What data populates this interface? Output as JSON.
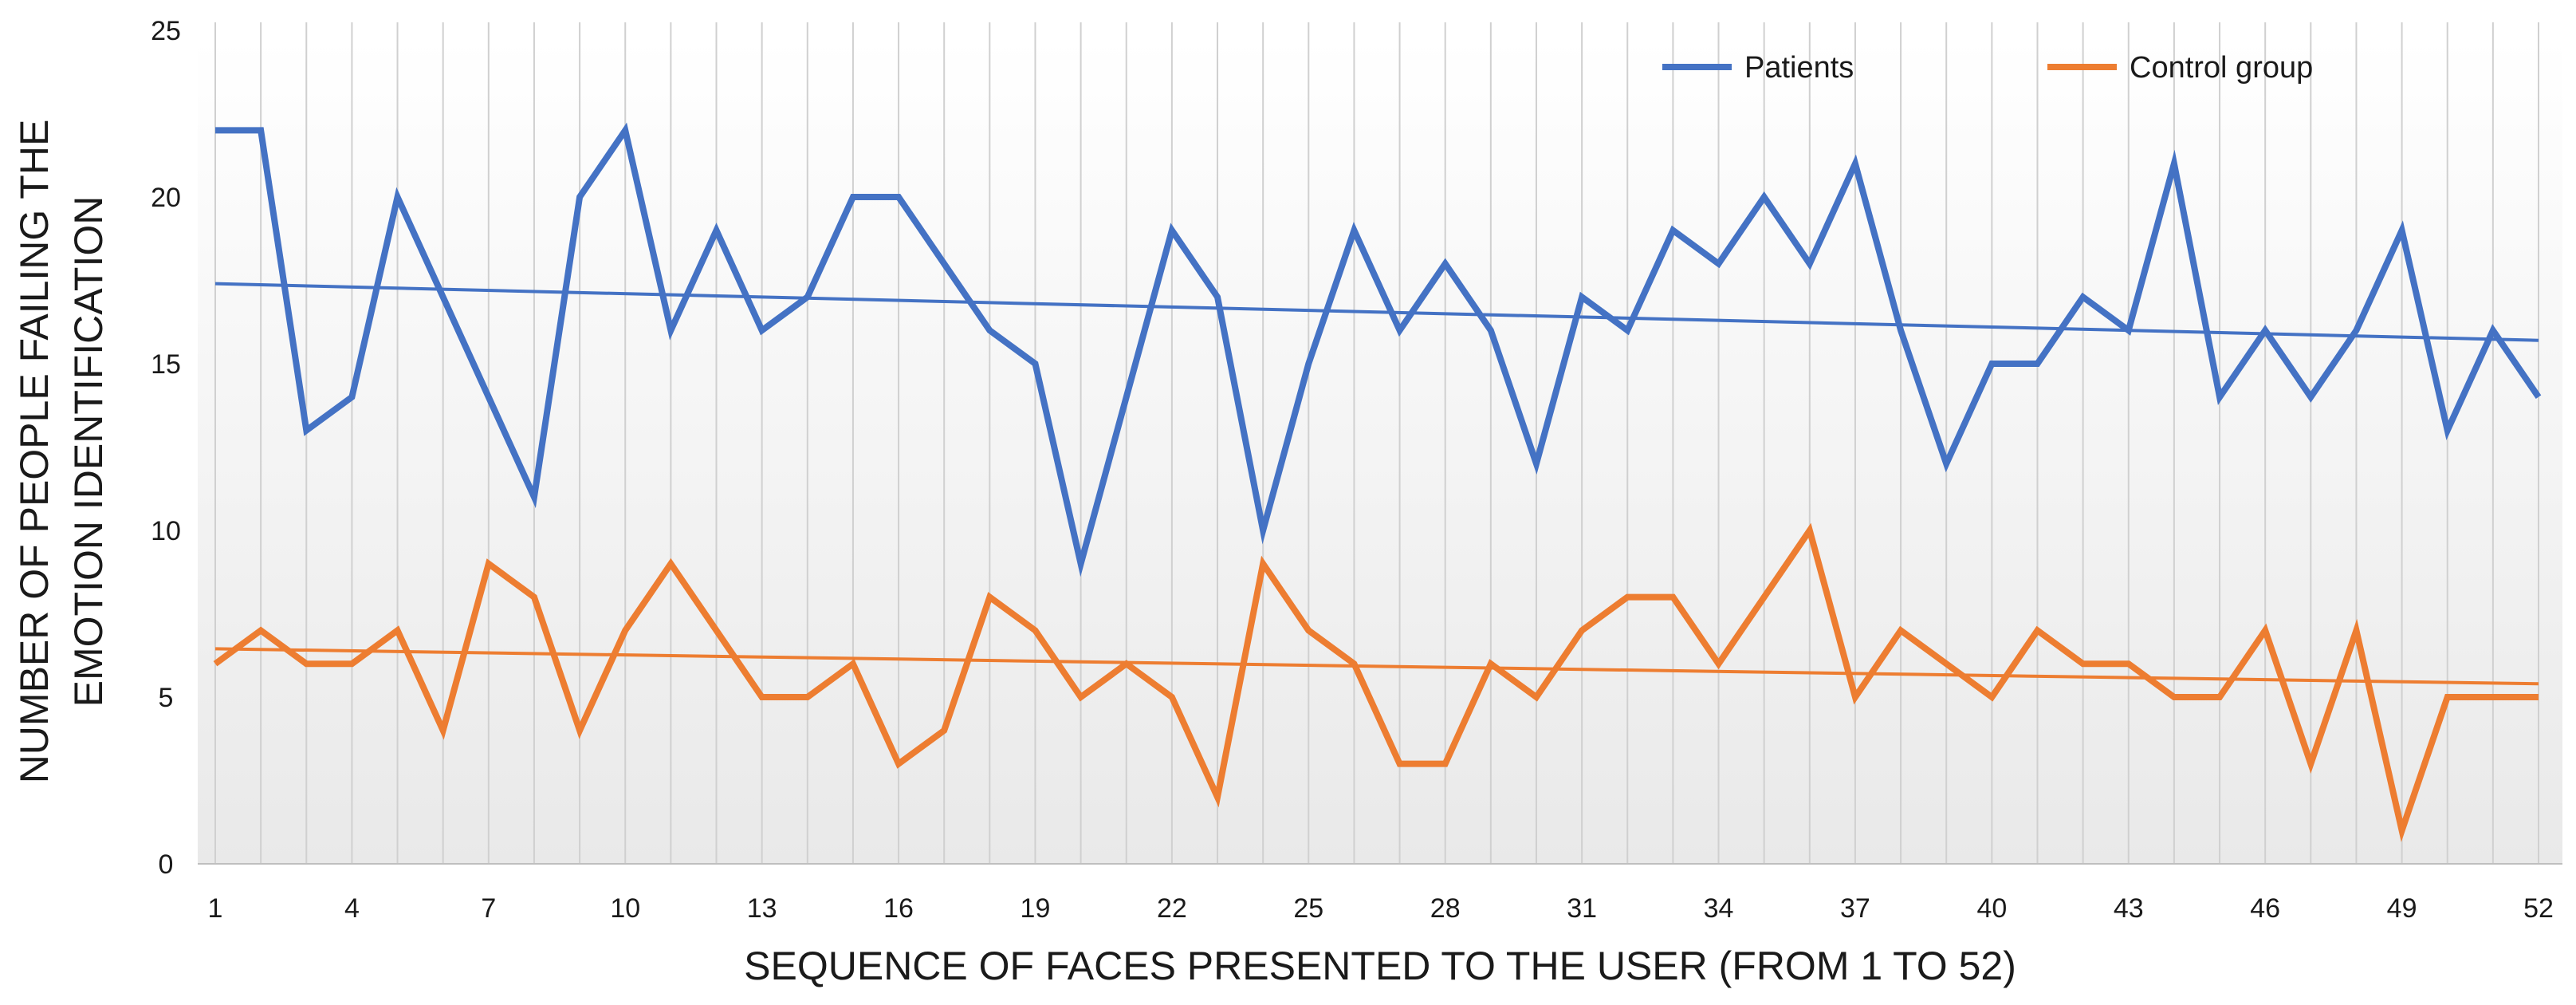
{
  "chart_data": {
    "type": "line",
    "title": "",
    "xlabel": "SEQUENCE OF FACES PRESENTED TO THE USER (FROM 1 TO 52)",
    "ylabel_line1": "NUMBER OF PEOPLE FAILING THE",
    "ylabel_line2": "EMOTION IDENTIFICATION",
    "ylim": [
      0,
      25
    ],
    "y_ticks": [
      0,
      5,
      10,
      15,
      20,
      25
    ],
    "x": [
      1,
      2,
      3,
      4,
      5,
      6,
      7,
      8,
      9,
      10,
      11,
      12,
      13,
      14,
      15,
      16,
      17,
      18,
      19,
      20,
      21,
      22,
      23,
      24,
      25,
      26,
      27,
      28,
      29,
      30,
      31,
      32,
      33,
      34,
      35,
      36,
      37,
      38,
      39,
      40,
      41,
      42,
      43,
      44,
      45,
      46,
      47,
      48,
      49,
      50,
      51,
      52
    ],
    "x_ticks": [
      1,
      4,
      7,
      10,
      13,
      16,
      19,
      22,
      25,
      28,
      31,
      34,
      37,
      40,
      43,
      46,
      49,
      52
    ],
    "grid": "vertical",
    "legend_position": "top-right",
    "series": [
      {
        "name": "Patients",
        "color": "#4472C4",
        "values": [
          22,
          22,
          13,
          14,
          20,
          17,
          14,
          11,
          20,
          22,
          16,
          19,
          16,
          17,
          20,
          20,
          18,
          16,
          15,
          9,
          14,
          19,
          17,
          10,
          15,
          19,
          16,
          18,
          16,
          12,
          17,
          16,
          19,
          18,
          20,
          18,
          21,
          16,
          12,
          15,
          15,
          17,
          16,
          21,
          14,
          16,
          14,
          16,
          19,
          13,
          16,
          14
        ],
        "trend": [
          17.4,
          15.7
        ]
      },
      {
        "name": "Control group",
        "color": "#ED7D31",
        "values": [
          6,
          7,
          6,
          6,
          7,
          4,
          9,
          8,
          4,
          7,
          9,
          7,
          5,
          5,
          6,
          3,
          4,
          8,
          7,
          5,
          6,
          5,
          2,
          9,
          7,
          6,
          3,
          3,
          6,
          5,
          7,
          8,
          8,
          6,
          8,
          10,
          5,
          7,
          6,
          5,
          7,
          6,
          6,
          5,
          5,
          7,
          3,
          7,
          1,
          5,
          5,
          5
        ],
        "trend": [
          6.45,
          5.4
        ]
      }
    ]
  }
}
